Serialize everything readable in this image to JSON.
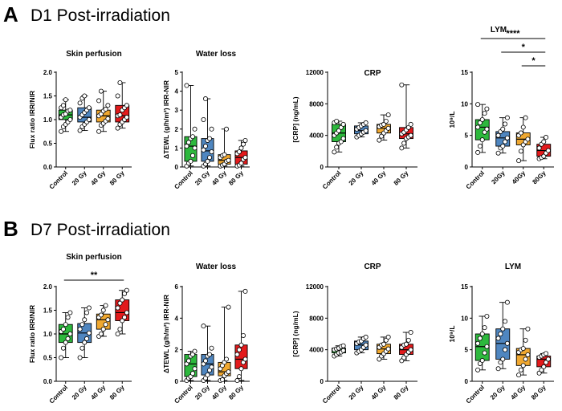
{
  "figure": {
    "rows": [
      {
        "letter": "A",
        "heading": "D1 Post-irradiation"
      },
      {
        "letter": "B",
        "heading": "D7 Post-irradiation"
      }
    ]
  },
  "colors": {
    "control": "#2db83d",
    "gy20": "#4f86c0",
    "gy40": "#f0a830",
    "gy80": "#e31a1c"
  },
  "chart_data": [
    {
      "type": "box",
      "panel": "A1",
      "title": "Skin perfusion",
      "ylabel": "Flux ratio IRR/NIR",
      "ylim": [
        0,
        2.0
      ],
      "yticks": [
        0,
        0.5,
        1.0,
        1.5,
        2.0
      ],
      "ytick_labels": [
        "0.0",
        "0.5",
        "1.0",
        "1.5",
        "2.0"
      ],
      "categories": [
        "Control",
        "20 Gy",
        "40 Gy",
        "80 Gy"
      ],
      "boxes": [
        {
          "min": 0.75,
          "q1": 1.0,
          "median": 1.1,
          "q3": 1.2,
          "max": 1.42
        },
        {
          "min": 0.77,
          "q1": 0.95,
          "median": 1.05,
          "q3": 1.25,
          "max": 1.5
        },
        {
          "min": 0.75,
          "q1": 0.95,
          "median": 1.08,
          "q3": 1.2,
          "max": 1.6
        },
        {
          "min": 0.82,
          "q1": 0.95,
          "median": 1.08,
          "q3": 1.3,
          "max": 1.78
        }
      ],
      "points": [
        [
          0.75,
          0.85,
          0.9,
          0.95,
          1.0,
          1.05,
          1.1,
          1.12,
          1.18,
          1.2,
          1.25,
          1.3,
          1.42
        ],
        [
          0.77,
          0.85,
          0.9,
          0.95,
          1.0,
          1.05,
          1.1,
          1.15,
          1.2,
          1.25,
          1.35,
          1.45,
          1.5
        ],
        [
          0.75,
          0.88,
          0.92,
          0.97,
          1.02,
          1.08,
          1.12,
          1.18,
          1.22,
          1.3,
          1.4,
          1.6
        ],
        [
          0.82,
          0.9,
          0.95,
          1.0,
          1.05,
          1.08,
          1.1,
          1.2,
          1.25,
          1.3,
          1.5,
          1.78
        ]
      ],
      "significance": []
    },
    {
      "type": "box",
      "panel": "A2",
      "title": "Water loss",
      "ylabel": "ΔTEWL (g/h/m²) IRR-NIR",
      "ylim": [
        0,
        5
      ],
      "yticks": [
        0,
        1,
        2,
        3,
        4,
        5
      ],
      "ytick_labels": [
        "0",
        "1",
        "2",
        "3",
        "4",
        "5"
      ],
      "categories": [
        "Control",
        "20 Gy",
        "40 Gy",
        "80 Gy"
      ],
      "boxes": [
        {
          "min": 0.05,
          "q1": 0.3,
          "median": 1.1,
          "q3": 1.6,
          "max": 4.3
        },
        {
          "min": 0.05,
          "q1": 0.3,
          "median": 0.85,
          "q3": 1.5,
          "max": 3.6
        },
        {
          "min": 0.05,
          "q1": 0.15,
          "median": 0.35,
          "q3": 0.65,
          "max": 2.0
        },
        {
          "min": 0.05,
          "q1": 0.15,
          "median": 0.5,
          "q3": 0.85,
          "max": 1.4
        }
      ],
      "points": [
        [
          0.05,
          0.2,
          0.3,
          0.6,
          1.0,
          1.1,
          1.3,
          1.5,
          1.6,
          2.0,
          4.3
        ],
        [
          0.05,
          0.15,
          0.3,
          0.5,
          0.8,
          0.9,
          1.1,
          1.4,
          1.5,
          2.0,
          2.5,
          3.6
        ],
        [
          0.05,
          0.1,
          0.15,
          0.3,
          0.35,
          0.5,
          0.6,
          0.65,
          2.0
        ],
        [
          0.05,
          0.1,
          0.2,
          0.4,
          0.5,
          0.7,
          0.8,
          1.0,
          1.2,
          1.4
        ]
      ],
      "significance": []
    },
    {
      "type": "box",
      "panel": "A3",
      "title": "CRP",
      "ylabel": "[CRP] (ng/mL)",
      "ylim": [
        0,
        12000
      ],
      "yticks": [
        0,
        4000,
        8000,
        12000
      ],
      "ytick_labels": [
        "0",
        "4000",
        "8000",
        "12000"
      ],
      "categories": [
        "Control",
        "20 Gy",
        "40 Gy",
        "80 Gy"
      ],
      "boxes": [
        {
          "min": 1900,
          "q1": 3200,
          "median": 4300,
          "q3": 5400,
          "max": 5800
        },
        {
          "min": 3800,
          "q1": 4200,
          "median": 4600,
          "q3": 5200,
          "max": 5600
        },
        {
          "min": 3400,
          "q1": 4300,
          "median": 4900,
          "q3": 5400,
          "max": 6600
        },
        {
          "min": 2400,
          "q1": 3600,
          "median": 4200,
          "q3": 5000,
          "max": 10400
        }
      ],
      "points": [
        [
          1900,
          2500,
          3000,
          3200,
          3600,
          4000,
          4300,
          4600,
          5000,
          5400,
          5600,
          5800
        ],
        [
          3800,
          4000,
          4200,
          4400,
          4600,
          4800,
          5000,
          5200,
          5400,
          5600
        ],
        [
          3400,
          3900,
          4300,
          4600,
          4900,
          5100,
          5300,
          5400,
          5800,
          6600
        ],
        [
          2400,
          3000,
          3600,
          3800,
          4000,
          4200,
          4400,
          4700,
          5000,
          5400,
          10400
        ]
      ],
      "significance": []
    },
    {
      "type": "box",
      "panel": "A4",
      "title": "LYM",
      "ylabel": "10⁹/L",
      "ylim": [
        0,
        15
      ],
      "yticks": [
        0,
        5,
        10,
        15
      ],
      "ytick_labels": [
        "0",
        "5",
        "10",
        "15"
      ],
      "categories": [
        "Control",
        "20Gy",
        "40Gy",
        "80Gy"
      ],
      "boxes": [
        {
          "min": 2.3,
          "q1": 4.3,
          "median": 6.3,
          "q3": 7.5,
          "max": 9.9
        },
        {
          "min": 2.2,
          "q1": 3.3,
          "median": 4.6,
          "q3": 5.6,
          "max": 7.8
        },
        {
          "min": 1.0,
          "q1": 3.5,
          "median": 4.4,
          "q3": 5.4,
          "max": 7.8
        },
        {
          "min": 1.3,
          "q1": 1.7,
          "median": 2.6,
          "q3": 3.6,
          "max": 4.7
        }
      ],
      "points": [
        [
          2.3,
          3.3,
          4.3,
          5.5,
          6.0,
          6.3,
          7.0,
          7.5,
          8.5,
          9.2,
          9.9
        ],
        [
          2.2,
          3.0,
          3.3,
          4.0,
          4.6,
          5.0,
          5.6,
          6.0,
          6.8,
          7.8
        ],
        [
          1.0,
          2.5,
          3.5,
          4.0,
          4.4,
          5.0,
          5.4,
          6.3,
          7.8
        ],
        [
          1.3,
          1.5,
          1.7,
          2.2,
          2.6,
          3.0,
          3.6,
          4.0,
          4.7
        ]
      ],
      "significance": [
        {
          "from": 0,
          "to": 3,
          "label": "****"
        },
        {
          "from": 1,
          "to": 3,
          "label": "*"
        },
        {
          "from": 2,
          "to": 3,
          "label": "*"
        }
      ]
    },
    {
      "type": "box",
      "panel": "B1",
      "title": "Skin perfusion",
      "ylabel": "Flux ratio IRR/NIR",
      "ylim": [
        0,
        2.0
      ],
      "yticks": [
        0,
        0.5,
        1.0,
        1.5,
        2.0
      ],
      "ytick_labels": [
        "0.0",
        "0.5",
        "1.0",
        "1.5",
        "2.0"
      ],
      "categories": [
        "Control",
        "20 Gy",
        "40 Gy",
        "80 Gy"
      ],
      "boxes": [
        {
          "min": 0.5,
          "q1": 0.82,
          "median": 1.0,
          "q3": 1.2,
          "max": 1.45
        },
        {
          "min": 0.5,
          "q1": 0.82,
          "median": 1.02,
          "q3": 1.22,
          "max": 1.55
        },
        {
          "min": 0.95,
          "q1": 1.1,
          "median": 1.3,
          "q3": 1.42,
          "max": 1.6
        },
        {
          "min": 1.0,
          "q1": 1.28,
          "median": 1.45,
          "q3": 1.72,
          "max": 1.92
        }
      ],
      "points": [
        [
          0.5,
          0.7,
          0.82,
          0.9,
          1.0,
          1.05,
          1.1,
          1.2,
          1.35,
          1.45
        ],
        [
          0.5,
          0.7,
          0.82,
          0.9,
          1.02,
          1.1,
          1.2,
          1.3,
          1.45,
          1.55
        ],
        [
          0.95,
          1.0,
          1.1,
          1.2,
          1.3,
          1.35,
          1.4,
          1.5,
          1.6
        ],
        [
          1.0,
          1.1,
          1.28,
          1.35,
          1.45,
          1.55,
          1.65,
          1.72,
          1.85,
          1.92
        ]
      ],
      "significance": [
        {
          "from": 0,
          "to": 3,
          "label": "**"
        }
      ]
    },
    {
      "type": "box",
      "panel": "B2",
      "title": "Water loss",
      "ylabel": "ΔTEWL (g/h/m²) IRR-NIR",
      "ylim": [
        0,
        6
      ],
      "yticks": [
        0,
        2,
        4,
        6
      ],
      "ytick_labels": [
        "0",
        "2",
        "4",
        "6"
      ],
      "categories": [
        "Control",
        "20 Gy",
        "40 Gy",
        "80 Gy"
      ],
      "boxes": [
        {
          "min": 0.05,
          "q1": 0.3,
          "median": 1.1,
          "q3": 1.7,
          "max": 1.9
        },
        {
          "min": 0.05,
          "q1": 0.4,
          "median": 1.1,
          "q3": 1.7,
          "max": 3.5
        },
        {
          "min": 0.05,
          "q1": 0.35,
          "median": 0.6,
          "q3": 1.2,
          "max": 4.7
        },
        {
          "min": 0.05,
          "q1": 0.8,
          "median": 1.4,
          "q3": 2.3,
          "max": 5.7
        }
      ],
      "points": [
        [
          0.05,
          0.2,
          0.3,
          0.5,
          0.8,
          1.1,
          1.3,
          1.6,
          1.7,
          1.9
        ],
        [
          0.05,
          0.2,
          0.4,
          0.7,
          0.9,
          1.1,
          1.3,
          1.6,
          1.7,
          2.1,
          3.5
        ],
        [
          0.05,
          0.1,
          0.35,
          0.5,
          0.6,
          0.8,
          1.0,
          1.2,
          1.4,
          4.7
        ],
        [
          0.05,
          0.3,
          0.8,
          1.2,
          1.4,
          1.7,
          2.0,
          2.3,
          2.9,
          5.7
        ]
      ],
      "significance": []
    },
    {
      "type": "box",
      "panel": "B3",
      "title": "CRP",
      "ylabel": "[CRP] (ng/mL)",
      "ylim": [
        0,
        12000
      ],
      "yticks": [
        0,
        4000,
        8000,
        12000
      ],
      "ytick_labels": [
        "0",
        "4000",
        "8000",
        "12000"
      ],
      "categories": [
        "Control",
        "20 Gy",
        "40 Gy",
        "80 Gy"
      ],
      "boxes": [
        {
          "min": 3200,
          "q1": 3600,
          "median": 3900,
          "q3": 4200,
          "max": 4500
        },
        {
          "min": 3600,
          "q1": 4000,
          "median": 4600,
          "q3": 5100,
          "max": 5600
        },
        {
          "min": 2800,
          "q1": 3500,
          "median": 4100,
          "q3": 4700,
          "max": 5600
        },
        {
          "min": 2600,
          "q1": 3400,
          "median": 4000,
          "q3": 4700,
          "max": 6200
        }
      ],
      "points": [
        [
          3200,
          3400,
          3600,
          3700,
          3900,
          4000,
          4100,
          4200,
          4400,
          4500
        ],
        [
          3600,
          3800,
          4000,
          4300,
          4600,
          4800,
          5000,
          5100,
          5400,
          5600
        ],
        [
          2800,
          3200,
          3500,
          3800,
          4100,
          4300,
          4600,
          4700,
          5200,
          5600
        ],
        [
          2600,
          3000,
          3400,
          3700,
          4000,
          4300,
          4600,
          4700,
          5200,
          6200
        ]
      ],
      "significance": []
    },
    {
      "type": "box",
      "panel": "B4",
      "title": "LYM",
      "ylabel": "10⁹/L",
      "ylim": [
        0,
        15
      ],
      "yticks": [
        0,
        5,
        10,
        15
      ],
      "ytick_labels": [
        "0",
        "5",
        "10",
        "15"
      ],
      "categories": [
        "Control",
        "20 Gy",
        "40 Gy",
        "80 Gy"
      ],
      "boxes": [
        {
          "min": 1.8,
          "q1": 3.3,
          "median": 5.5,
          "q3": 7.5,
          "max": 10.3
        },
        {
          "min": 2.0,
          "q1": 3.5,
          "median": 6.0,
          "q3": 8.3,
          "max": 12.5
        },
        {
          "min": 1.0,
          "q1": 2.5,
          "median": 4.2,
          "q3": 5.2,
          "max": 8.3
        },
        {
          "min": 1.3,
          "q1": 2.3,
          "median": 3.5,
          "q3": 4.0,
          "max": 4.4
        }
      ],
      "points": [
        [
          1.8,
          2.8,
          3.3,
          4.5,
          5.5,
          6.0,
          6.8,
          7.5,
          8.5,
          10.3
        ],
        [
          2.0,
          3.0,
          3.5,
          5.0,
          6.0,
          6.8,
          7.5,
          8.3,
          9.5,
          12.5
        ],
        [
          1.0,
          1.8,
          2.5,
          3.5,
          4.2,
          4.6,
          5.0,
          5.2,
          6.5,
          8.3
        ],
        [
          1.3,
          1.8,
          2.3,
          3.0,
          3.5,
          3.8,
          4.0,
          4.2,
          4.4
        ]
      ],
      "significance": []
    }
  ]
}
